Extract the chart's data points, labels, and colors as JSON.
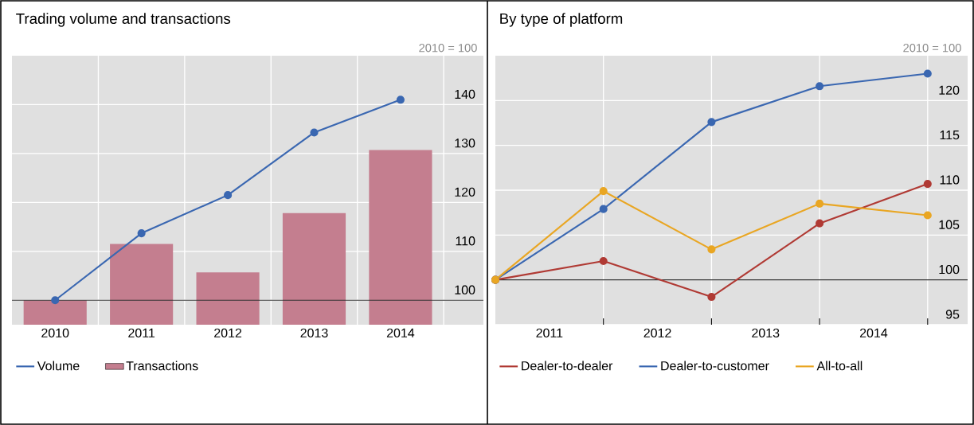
{
  "chart_data": [
    {
      "type": "bar",
      "title": "Trading volume and transactions",
      "annotations": [
        "2010 = 100"
      ],
      "categories": [
        "2010",
        "2011",
        "2012",
        "2013",
        "2014"
      ],
      "series": [
        {
          "name": "Volume",
          "type": "line",
          "color": "#3a67b1",
          "marker": "circle",
          "values": [
            100,
            113.7,
            121.5,
            134.3,
            141.0
          ]
        },
        {
          "name": "Transactions",
          "type": "bar",
          "color": "#c47e8f",
          "values": [
            100,
            111.5,
            105.7,
            117.8,
            130.7
          ]
        }
      ],
      "ylim": [
        95,
        150
      ],
      "yticks": [
        100,
        110,
        120,
        130,
        140
      ],
      "grid": true,
      "legend": "bottom",
      "ref_lines": [
        {
          "axis": "y",
          "value": 100,
          "color": "#333333"
        }
      ]
    },
    {
      "type": "line",
      "title": "By type of platform",
      "annotations": [
        "2010 = 100"
      ],
      "x": [
        2011,
        2012,
        2013,
        2014,
        2015
      ],
      "series": [
        {
          "name": "Dealer-to-dealer",
          "color": "#b03a34",
          "values": [
            100,
            102.1,
            98.1,
            106.3,
            110.7
          ]
        },
        {
          "name": "Dealer-to-customer",
          "color": "#3a67b1",
          "values": [
            100,
            107.9,
            117.6,
            121.6,
            123.0
          ]
        },
        {
          "name": "All-to-all",
          "color": "#e9a623",
          "values": [
            100,
            109.9,
            103.4,
            108.5,
            107.2
          ]
        }
      ],
      "xlim": [
        2011,
        2015.37
      ],
      "xticks": [
        {
          "value": 2011.5,
          "label": "2011"
        },
        {
          "value": 2012.5,
          "label": "2012"
        },
        {
          "value": 2013.5,
          "label": "2013"
        },
        {
          "value": 2014.5,
          "label": "2014"
        },
        {
          "value": 2012,
          "label": null
        },
        {
          "value": 2013,
          "label": null
        },
        {
          "value": 2014,
          "label": null
        },
        {
          "value": 2015,
          "label": null
        }
      ],
      "ylim": [
        95,
        125
      ],
      "yticks": [
        95,
        100,
        105,
        110,
        115,
        120
      ],
      "grid": true,
      "legend": "bottom",
      "marker": "circle",
      "ref_lines": [
        {
          "axis": "y",
          "value": 100,
          "color": "#333333"
        }
      ]
    }
  ]
}
